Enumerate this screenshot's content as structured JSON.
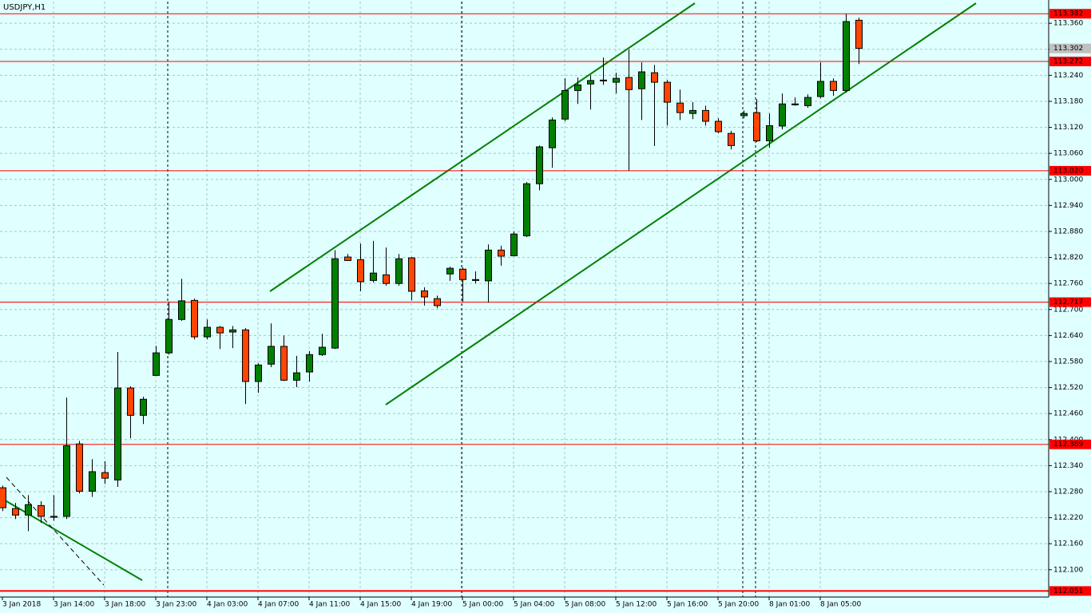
{
  "chart_data": {
    "type": "candlestick",
    "title": "USDJPY,H1",
    "categories": [
      "3 Jan 2018",
      null,
      null,
      null,
      "3 Jan 14:00",
      null,
      null,
      null,
      "3 Jan 18:00",
      null,
      null,
      null,
      "3 Jan 23:00",
      null,
      null,
      null,
      "4 Jan 03:00",
      null,
      null,
      null,
      "4 Jan 07:00",
      null,
      null,
      null,
      "4 Jan 11:00",
      null,
      null,
      null,
      "4 Jan 15:00",
      null,
      null,
      null,
      "4 Jan 19:00",
      null,
      null,
      null,
      "5 Jan 00:00",
      null,
      null,
      null,
      "5 Jan 04:00",
      null,
      null,
      null,
      "5 Jan 08:00",
      null,
      null,
      null,
      "5 Jan 12:00",
      null,
      null,
      null,
      "5 Jan 16:00",
      null,
      null,
      null,
      "5 Jan 20:00",
      null,
      null,
      null,
      "8 Jan 01:00",
      null,
      null,
      null,
      "8 Jan 05:00",
      null,
      null,
      null
    ],
    "open": [
      112.289,
      112.241,
      112.226,
      112.248,
      112.221,
      112.223,
      112.39,
      112.281,
      112.324,
      112.307,
      112.519,
      112.456,
      112.548,
      112.6,
      112.677,
      112.721,
      112.637,
      112.659,
      112.648,
      112.653,
      112.534,
      112.574,
      112.615,
      112.537,
      112.556,
      112.596,
      112.611,
      112.821,
      112.815,
      112.767,
      112.78,
      112.76,
      112.819,
      112.743,
      112.725,
      112.782,
      112.793,
      112.767,
      112.766,
      112.837,
      112.824,
      112.87,
      112.99,
      113.073,
      113.139,
      113.205,
      113.22,
      113.228,
      113.224,
      113.235,
      113.209,
      113.246,
      113.224,
      113.176,
      113.152,
      113.159,
      113.134,
      113.106,
      113.147,
      113.154,
      113.089,
      113.123,
      113.172,
      113.17,
      113.191,
      113.226,
      113.205,
      113.367
    ],
    "high": [
      112.294,
      112.254,
      112.272,
      112.258,
      112.272,
      112.497,
      112.397,
      112.355,
      112.35,
      112.602,
      112.523,
      112.499,
      112.616,
      112.718,
      112.771,
      112.725,
      112.677,
      112.662,
      112.662,
      112.657,
      112.576,
      112.668,
      112.64,
      112.593,
      112.604,
      112.644,
      112.837,
      112.828,
      112.852,
      112.858,
      112.843,
      112.828,
      112.821,
      112.751,
      112.732,
      112.799,
      112.797,
      112.788,
      112.85,
      112.847,
      112.88,
      112.994,
      113.078,
      113.143,
      113.233,
      113.235,
      113.24,
      113.281,
      113.246,
      113.299,
      113.27,
      113.264,
      113.229,
      113.207,
      113.178,
      113.17,
      113.141,
      113.112,
      113.159,
      113.185,
      113.152,
      113.198,
      113.189,
      113.196,
      113.27,
      113.233,
      113.382,
      113.373
    ],
    "low": [
      112.235,
      112.217,
      112.189,
      112.208,
      112.213,
      112.217,
      112.276,
      112.268,
      112.298,
      112.291,
      112.403,
      112.436,
      112.547,
      112.596,
      112.674,
      112.631,
      112.631,
      112.609,
      112.611,
      112.482,
      112.508,
      112.567,
      112.535,
      112.521,
      112.534,
      112.593,
      112.609,
      112.812,
      112.742,
      112.762,
      112.755,
      112.755,
      112.721,
      112.709,
      112.703,
      112.766,
      112.718,
      112.76,
      112.716,
      112.801,
      112.823,
      112.867,
      112.975,
      113.027,
      113.134,
      113.174,
      113.161,
      113.218,
      113.198,
      113.02,
      113.137,
      113.077,
      113.124,
      113.137,
      113.139,
      113.124,
      113.106,
      113.069,
      113.141,
      113.086,
      113.073,
      113.115,
      113.17,
      113.165,
      113.187,
      113.193,
      113.2,
      113.266
    ],
    "close": [
      112.243,
      112.226,
      112.25,
      112.223,
      112.223,
      112.386,
      112.281,
      112.326,
      112.311,
      112.519,
      112.456,
      112.493,
      112.6,
      112.677,
      112.72,
      112.637,
      112.659,
      112.646,
      112.653,
      112.534,
      112.572,
      112.615,
      112.537,
      112.554,
      112.596,
      112.613,
      112.817,
      112.813,
      112.764,
      112.784,
      112.76,
      112.817,
      112.742,
      112.729,
      112.709,
      112.795,
      112.769,
      112.769,
      112.837,
      112.823,
      112.874,
      112.99,
      113.075,
      113.137,
      113.205,
      113.218,
      113.228,
      113.229,
      113.233,
      113.207,
      113.248,
      113.224,
      113.178,
      113.154,
      113.159,
      113.134,
      113.11,
      113.078,
      113.152,
      113.089,
      113.124,
      113.174,
      113.174,
      113.189,
      113.226,
      113.205,
      113.364,
      113.302
    ],
    "up_color": "#008000",
    "down_color": "#ff4500",
    "ylim": [
      112.037,
      113.41
    ],
    "yticks": [
      {
        "value": 112.1,
        "label": "112.100"
      },
      {
        "value": 112.16,
        "label": "112.160"
      },
      {
        "value": 112.22,
        "label": "112.220"
      },
      {
        "value": 112.28,
        "label": "112.280"
      },
      {
        "value": 112.34,
        "label": "112.340"
      },
      {
        "value": 112.4,
        "label": "112.400"
      },
      {
        "value": 112.46,
        "label": "112.460"
      },
      {
        "value": 112.52,
        "label": "112.520"
      },
      {
        "value": 112.58,
        "label": "112.580"
      },
      {
        "value": 112.64,
        "label": "112.640"
      },
      {
        "value": 112.7,
        "label": "112.700"
      },
      {
        "value": 112.76,
        "label": "112.760"
      },
      {
        "value": 112.82,
        "label": "112.820"
      },
      {
        "value": 112.88,
        "label": "112.880"
      },
      {
        "value": 112.94,
        "label": "112.940"
      },
      {
        "value": 113,
        "label": "113.000"
      },
      {
        "value": 113.06,
        "label": "113.060"
      },
      {
        "value": 113.12,
        "label": "113.120"
      },
      {
        "value": 113.18,
        "label": "113.180"
      },
      {
        "value": 113.24,
        "label": "113.240"
      },
      {
        "value": 113.3,
        "label": "113.300"
      },
      {
        "value": 113.36,
        "label": "113.360"
      }
    ],
    "grid": true,
    "levels": [
      113.382,
      113.272,
      {
        "value": 113.02,
        "label": "113.020"
      },
      112.717,
      112.389,
      112.051
    ],
    "level_color": "#ff0000",
    "bid": 113.302,
    "bid_color": "#c0c0c0"
  }
}
